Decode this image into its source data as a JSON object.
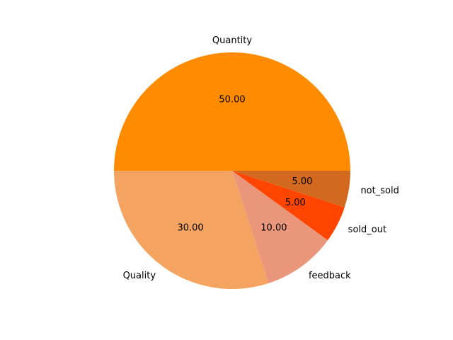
{
  "chart_data": {
    "type": "pie",
    "categories": [
      "Quantity",
      "Quality",
      "feedback",
      "sold_out",
      "not_sold"
    ],
    "values": [
      50,
      30,
      10,
      5,
      5
    ],
    "value_labels": [
      "50.00",
      "30.00",
      "10.00",
      "5.00",
      "5.00"
    ],
    "colors": [
      "#ff8c00",
      "#f4a460",
      "#e9967a",
      "#ff4500",
      "#d2691e"
    ],
    "start_angle_deg": 0,
    "direction": "counterclockwise",
    "title": "",
    "legend": "none"
  }
}
